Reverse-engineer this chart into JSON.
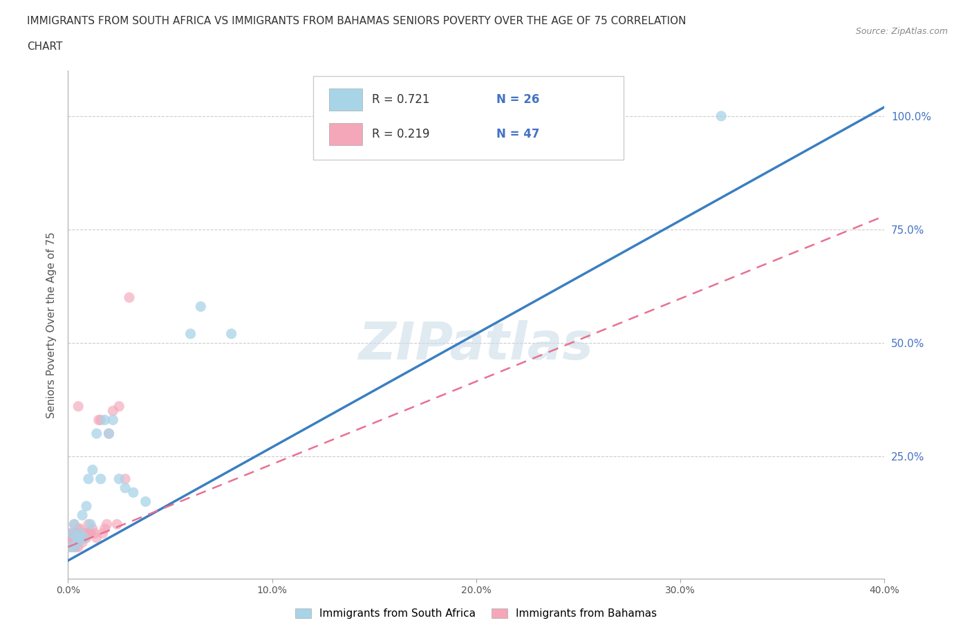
{
  "title_line1": "IMMIGRANTS FROM SOUTH AFRICA VS IMMIGRANTS FROM BAHAMAS SENIORS POVERTY OVER THE AGE OF 75 CORRELATION",
  "title_line2": "CHART",
  "source_text": "Source: ZipAtlas.com",
  "ylabel": "Seniors Poverty Over the Age of 75",
  "r_south_africa": 0.721,
  "n_south_africa": 26,
  "r_bahamas": 0.219,
  "n_bahamas": 47,
  "color_south_africa": "#a8d4e8",
  "color_bahamas": "#f4a7b9",
  "line_color_south_africa": "#3a7fc1",
  "line_color_bahamas": "#e87090",
  "background_color": "#ffffff",
  "grid_color": "#cccccc",
  "title_color": "#333333",
  "watermark_color": "#ccdce8",
  "xlim": [
    0.0,
    0.4
  ],
  "ylim": [
    -0.02,
    1.1
  ],
  "xtick_labels": [
    "0.0%",
    "10.0%",
    "20.0%",
    "30.0%",
    "40.0%"
  ],
  "xtick_values": [
    0.0,
    0.1,
    0.2,
    0.3,
    0.4
  ],
  "ytick_labels": [
    "25.0%",
    "50.0%",
    "75.0%",
    "100.0%"
  ],
  "ytick_values": [
    0.25,
    0.5,
    0.75,
    1.0
  ],
  "right_ytick_labels": [
    "100.0%",
    "75.0%",
    "50.0%",
    "25.0%"
  ],
  "right_ytick_values": [
    1.0,
    0.75,
    0.5,
    0.25
  ],
  "sa_trend_x": [
    0.0,
    0.4
  ],
  "sa_trend_y": [
    0.02,
    1.02
  ],
  "bah_trend_x": [
    0.0,
    0.4
  ],
  "bah_trend_y": [
    0.05,
    0.78
  ],
  "south_africa_x": [
    0.001,
    0.002,
    0.003,
    0.003,
    0.004,
    0.005,
    0.006,
    0.007,
    0.008,
    0.009,
    0.01,
    0.011,
    0.012,
    0.014,
    0.016,
    0.018,
    0.02,
    0.022,
    0.025,
    0.028,
    0.032,
    0.06,
    0.065,
    0.08,
    0.32,
    0.038
  ],
  "south_africa_y": [
    0.05,
    0.08,
    0.05,
    0.1,
    0.07,
    0.06,
    0.08,
    0.12,
    0.07,
    0.14,
    0.2,
    0.1,
    0.22,
    0.3,
    0.2,
    0.33,
    0.3,
    0.33,
    0.2,
    0.18,
    0.17,
    0.52,
    0.58,
    0.52,
    1.0,
    0.15
  ],
  "bahamas_x": [
    0.001,
    0.001,
    0.001,
    0.002,
    0.002,
    0.002,
    0.002,
    0.003,
    0.003,
    0.003,
    0.003,
    0.003,
    0.004,
    0.004,
    0.004,
    0.004,
    0.005,
    0.005,
    0.005,
    0.005,
    0.005,
    0.006,
    0.006,
    0.006,
    0.007,
    0.007,
    0.008,
    0.008,
    0.009,
    0.009,
    0.01,
    0.01,
    0.011,
    0.012,
    0.013,
    0.014,
    0.015,
    0.016,
    0.017,
    0.018,
    0.019,
    0.02,
    0.022,
    0.024,
    0.025,
    0.028,
    0.03
  ],
  "bahamas_y": [
    0.05,
    0.07,
    0.08,
    0.05,
    0.06,
    0.07,
    0.08,
    0.05,
    0.06,
    0.07,
    0.08,
    0.1,
    0.05,
    0.06,
    0.07,
    0.08,
    0.05,
    0.07,
    0.08,
    0.09,
    0.36,
    0.07,
    0.08,
    0.09,
    0.06,
    0.07,
    0.07,
    0.08,
    0.07,
    0.08,
    0.08,
    0.1,
    0.08,
    0.09,
    0.08,
    0.07,
    0.33,
    0.33,
    0.08,
    0.09,
    0.1,
    0.3,
    0.35,
    0.1,
    0.36,
    0.2,
    0.6
  ]
}
